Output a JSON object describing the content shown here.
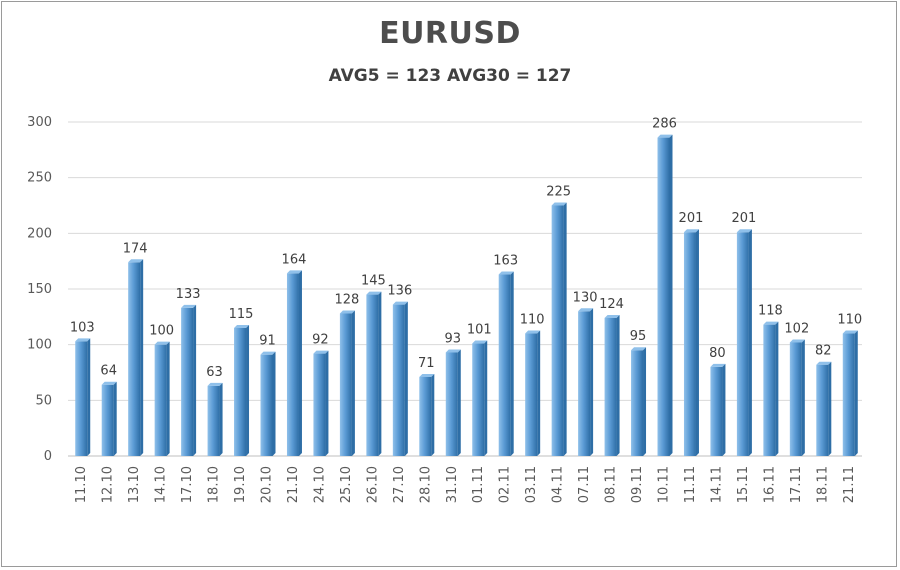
{
  "chart_data": {
    "type": "bar",
    "title": "EURUSD",
    "subtitle": "AVG5 = 123 AVG30 = 127",
    "categories": [
      "11.10",
      "12.10",
      "13.10",
      "14.10",
      "17.10",
      "18.10",
      "19.10",
      "20.10",
      "21.10",
      "24.10",
      "25.10",
      "26.10",
      "27.10",
      "28.10",
      "31.10",
      "01.11",
      "02.11",
      "03.11",
      "04.11",
      "07.11",
      "08.11",
      "09.11",
      "10.11",
      "11.11",
      "14.11",
      "15.11",
      "16.11",
      "17.11",
      "18.11",
      "21.11"
    ],
    "values": [
      103,
      64,
      174,
      100,
      133,
      63,
      115,
      91,
      164,
      92,
      128,
      145,
      136,
      71,
      93,
      101,
      163,
      110,
      225,
      130,
      124,
      95,
      286,
      201,
      80,
      201,
      118,
      102,
      82,
      110
    ],
    "ylim": [
      0,
      300
    ],
    "yticks": [
      0,
      50,
      100,
      150,
      200,
      250,
      300
    ],
    "grid": true,
    "legend": "none",
    "colors": {
      "bar_light": "#8fc0ea",
      "bar_mid": "#5b9bd5",
      "bar_dark": "#2e6ea6",
      "grid": "#d9d9d9"
    }
  }
}
